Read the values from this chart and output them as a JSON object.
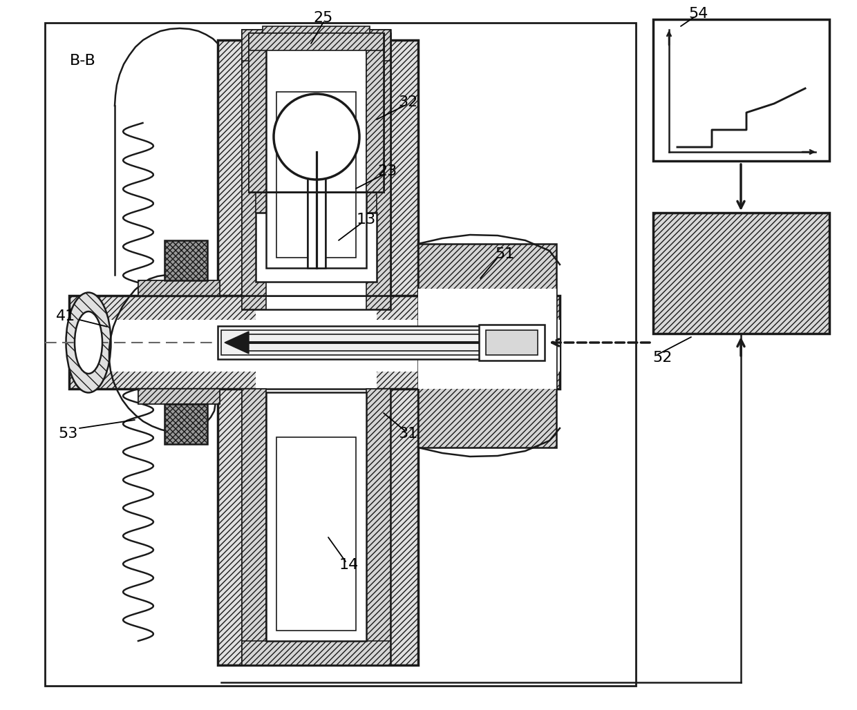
{
  "bg_color": "#ffffff",
  "line_color": "#1a1a1a",
  "fig_width": 12.4,
  "fig_height": 10.28,
  "labels": [
    "B-B",
    "25",
    "32",
    "23",
    "13",
    "51",
    "31",
    "14",
    "41",
    "53",
    "54",
    "52"
  ]
}
